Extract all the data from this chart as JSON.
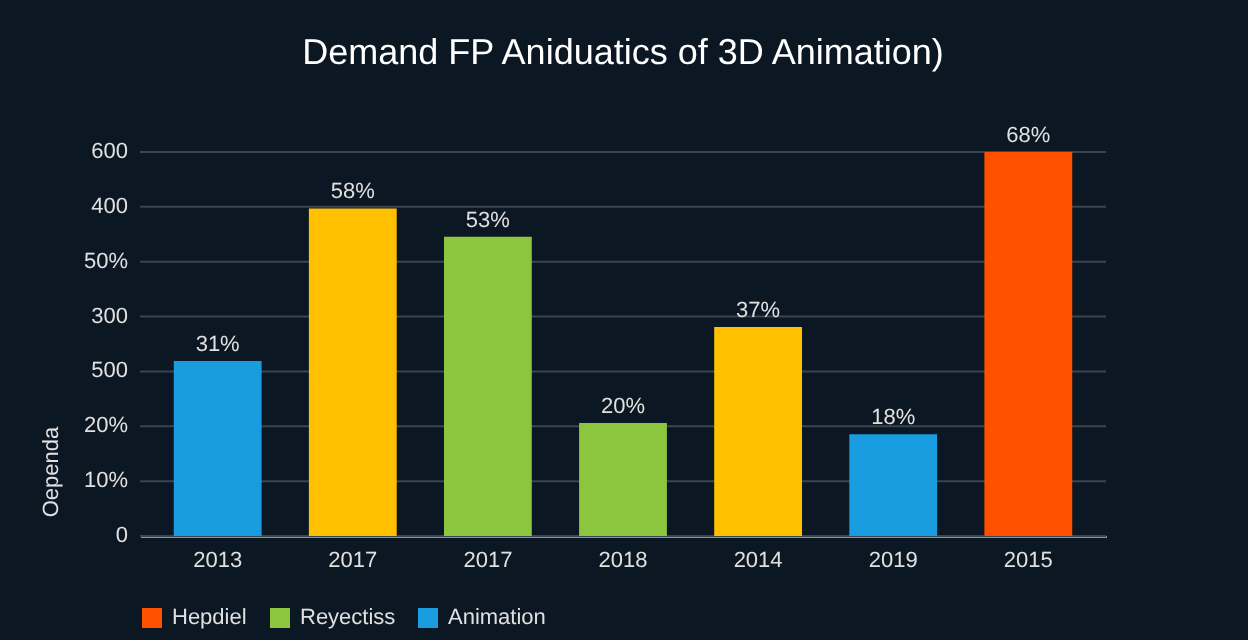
{
  "chart_data": {
    "type": "bar",
    "title": "Demand FP Aniduatics of 3D Animation)",
    "ylabel": "Oependa",
    "categories": [
      "2013",
      "2017",
      "2017",
      "2018",
      "2014",
      "2019",
      "2015"
    ],
    "series": [
      {
        "name": "Hepdiel",
        "color": "#ff5000",
        "values": [
          null,
          null,
          null,
          null,
          null,
          null,
          68
        ],
        "value_labels": [
          null,
          null,
          null,
          null,
          null,
          null,
          "68%"
        ]
      },
      {
        "name": "Reyectiss",
        "color": "#8cc63f",
        "values": [
          null,
          null,
          53,
          20,
          null,
          null,
          null
        ],
        "value_labels": [
          null,
          null,
          "53%",
          "20%",
          null,
          null,
          null
        ]
      },
      {
        "name": "Animation",
        "color": "#1a9de0",
        "values": [
          31,
          null,
          null,
          null,
          null,
          18,
          null
        ],
        "value_labels": [
          "31%",
          null,
          null,
          null,
          null,
          "18%",
          null
        ]
      },
      {
        "color": "#ffc000",
        "values": [
          null,
          58,
          null,
          null,
          37,
          null,
          null
        ],
        "value_labels": [
          null,
          "58%",
          null,
          null,
          "37%",
          null,
          null
        ]
      }
    ],
    "annotations": [
      "600",
      "400",
      "50%",
      "300",
      "500",
      "20%",
      "10%",
      "0"
    ],
    "grid": "y",
    "legend": "bottom"
  }
}
